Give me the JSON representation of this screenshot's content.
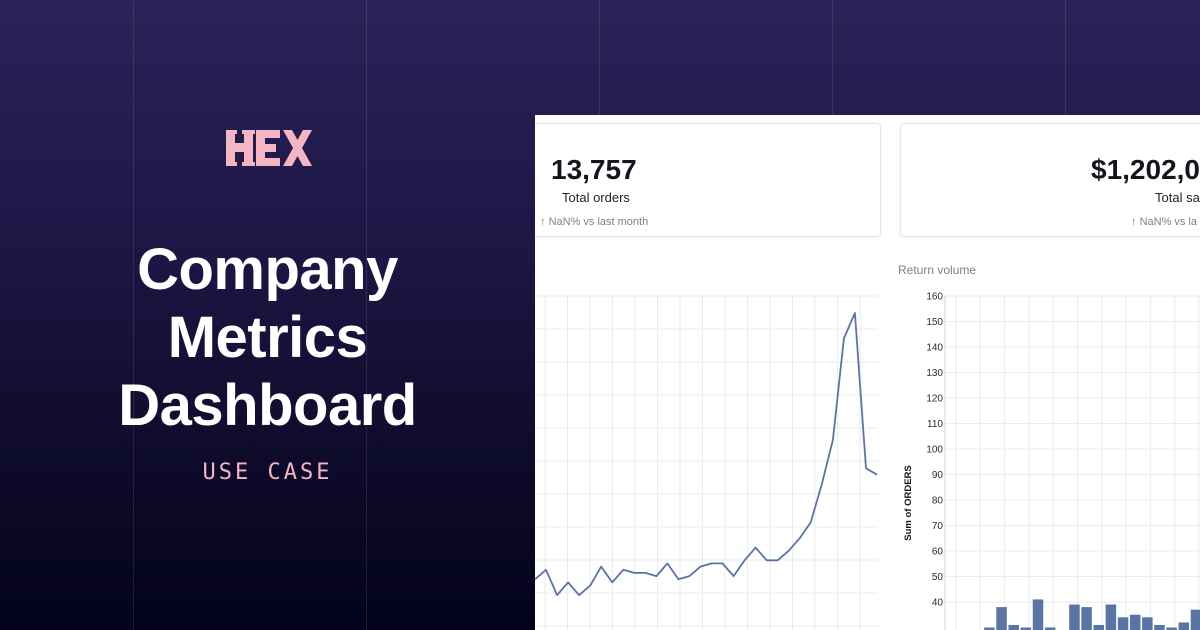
{
  "hero": {
    "logo_text": "HEX",
    "title_lines": [
      "Company",
      "Metrics",
      "Dashboard"
    ],
    "subtitle": "USE CASE"
  },
  "metrics": [
    {
      "value": "13,757",
      "label": "Total orders",
      "change": "NaN% vs last month",
      "change_arrow": "↑"
    },
    {
      "value": "$1,202,0",
      "label": "Total sa",
      "change": "NaN% vs la",
      "change_arrow": "↑"
    }
  ],
  "colors": {
    "accent": "#f4b6c2",
    "series": "#5a74a3",
    "grid": "#ebebef"
  },
  "chart_data": [
    {
      "type": "line",
      "title": "",
      "xlabel": "",
      "ylabel": "",
      "grid": true,
      "x": [
        0,
        1,
        2,
        3,
        4,
        5,
        6,
        7,
        8,
        9,
        10,
        11,
        12,
        13,
        14,
        15,
        16,
        17,
        18,
        19,
        20,
        21,
        22,
        23,
        24,
        25,
        26,
        27,
        28,
        29,
        30,
        31
      ],
      "series": [
        {
          "values": [
            0.16,
            0.19,
            0.11,
            0.15,
            0.11,
            0.14,
            0.2,
            0.15,
            0.19,
            0.18,
            0.18,
            0.17,
            0.21,
            0.16,
            0.17,
            0.2,
            0.21,
            0.21,
            0.17,
            0.22,
            0.26,
            0.22,
            0.22,
            0.25,
            0.29,
            0.34,
            0.46,
            0.6,
            0.92,
            1.0,
            0.51,
            0.49
          ]
        }
      ]
    },
    {
      "type": "bar",
      "title": "Return volume",
      "xlabel": "",
      "ylabel": "Sum of ORDERS",
      "ylim": [
        30,
        160
      ],
      "yticks": [
        160,
        150,
        140,
        130,
        120,
        110,
        100,
        90,
        80,
        70,
        60,
        50,
        40
      ],
      "grid": true,
      "values": [
        28,
        30,
        38,
        31,
        30,
        41,
        30,
        29,
        39,
        38,
        31,
        39,
        34,
        35,
        34,
        31,
        30,
        32,
        37
      ]
    }
  ]
}
